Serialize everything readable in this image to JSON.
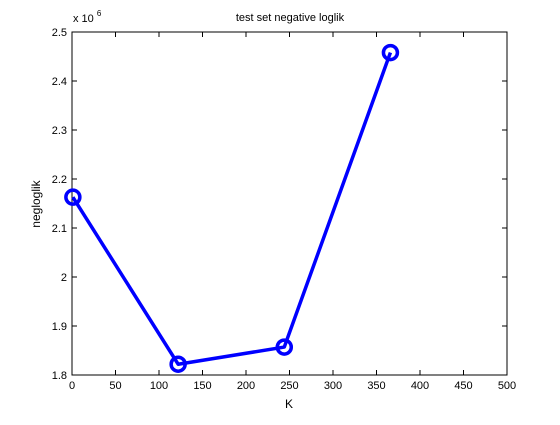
{
  "chart_data": {
    "type": "line",
    "title": "test set negative loglik",
    "xlabel": "K",
    "ylabel": "negloglik",
    "xlim": [
      0,
      500
    ],
    "ylim": [
      1.8,
      2.5
    ],
    "x_ticks": [
      0,
      50,
      100,
      150,
      200,
      250,
      300,
      350,
      400,
      450,
      500
    ],
    "y_ticks": [
      1.8,
      1.9,
      2,
      2.1,
      2.2,
      2.3,
      2.4,
      2.5
    ],
    "x_tick_labels": [
      "0",
      "50",
      "100",
      "150",
      "200",
      "250",
      "300",
      "350",
      "400",
      "450",
      "500"
    ],
    "y_tick_labels": [
      "1.8",
      "1.9",
      "2",
      "2.1",
      "2.2",
      "2.3",
      "2.4",
      "2.5"
    ],
    "y_multiplier_base": "x 10",
    "y_multiplier_exp": "6",
    "grid": false,
    "series": [
      {
        "x": [
          1,
          122,
          244,
          366
        ],
        "y": [
          2.163,
          1.822,
          1.857,
          2.458
        ],
        "color": "#0000ff",
        "marker": "circle"
      }
    ]
  }
}
